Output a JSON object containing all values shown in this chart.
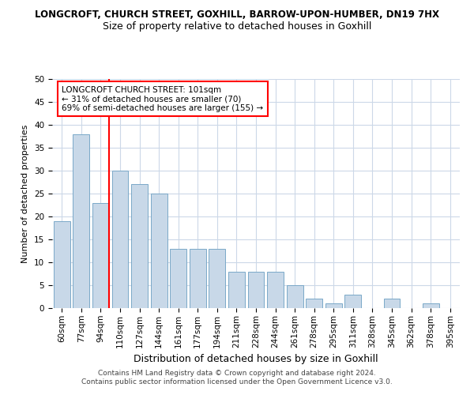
{
  "title": "LONGCROFT, CHURCH STREET, GOXHILL, BARROW-UPON-HUMBER, DN19 7HX",
  "subtitle": "Size of property relative to detached houses in Goxhill",
  "xlabel": "Distribution of detached houses by size in Goxhill",
  "ylabel": "Number of detached properties",
  "categories": [
    "60sqm",
    "77sqm",
    "94sqm",
    "110sqm",
    "127sqm",
    "144sqm",
    "161sqm",
    "177sqm",
    "194sqm",
    "211sqm",
    "228sqm",
    "244sqm",
    "261sqm",
    "278sqm",
    "295sqm",
    "311sqm",
    "328sqm",
    "345sqm",
    "362sqm",
    "378sqm",
    "395sqm"
  ],
  "values": [
    19,
    38,
    23,
    30,
    27,
    25,
    13,
    13,
    13,
    8,
    8,
    8,
    5,
    2,
    1,
    3,
    0,
    2,
    0,
    1,
    0
  ],
  "bar_color": "#c8d8e8",
  "bar_edge_color": "#7aa8c8",
  "vline_color": "red",
  "vline_x": 2.425,
  "ylim": [
    0,
    50
  ],
  "yticks": [
    0,
    5,
    10,
    15,
    20,
    25,
    30,
    35,
    40,
    45,
    50
  ],
  "annotation_text": "LONGCROFT CHURCH STREET: 101sqm\n← 31% of detached houses are smaller (70)\n69% of semi-detached houses are larger (155) →",
  "annotation_box_color": "white",
  "annotation_box_edgecolor": "red",
  "footer_line1": "Contains HM Land Registry data © Crown copyright and database right 2024.",
  "footer_line2": "Contains public sector information licensed under the Open Government Licence v3.0.",
  "background_color": "white",
  "grid_color": "#ccd8e8",
  "title_fontsize": 8.5,
  "subtitle_fontsize": 9,
  "ylabel_fontsize": 8,
  "xlabel_fontsize": 9,
  "tick_fontsize": 7.5,
  "annotation_fontsize": 7.5,
  "footer_fontsize": 6.5
}
